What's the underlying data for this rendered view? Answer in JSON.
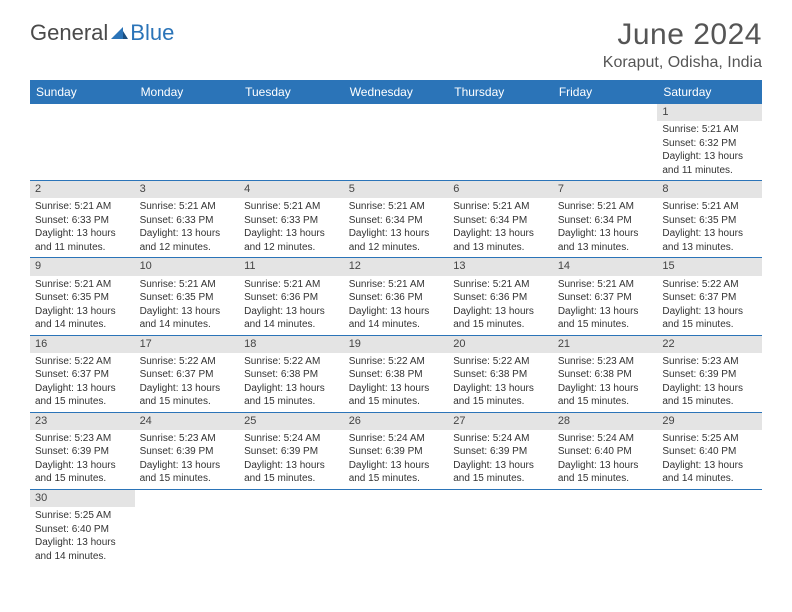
{
  "brand": {
    "part1": "General",
    "part2": "Blue"
  },
  "title": "June 2024",
  "location": "Koraput, Odisha, India",
  "colors": {
    "header_bg": "#2b74b8",
    "header_text": "#ffffff",
    "daynum_bg": "#e4e4e4",
    "border": "#2b74b8",
    "text": "#333333",
    "title_text": "#555555"
  },
  "weekdays": [
    "Sunday",
    "Monday",
    "Tuesday",
    "Wednesday",
    "Thursday",
    "Friday",
    "Saturday"
  ],
  "layout": {
    "rows": 6,
    "cols": 7,
    "first_weekday_index": 6,
    "days_in_month": 30
  },
  "days": {
    "1": {
      "sunrise": "5:21 AM",
      "sunset": "6:32 PM",
      "daylight": "13 hours and 11 minutes."
    },
    "2": {
      "sunrise": "5:21 AM",
      "sunset": "6:33 PM",
      "daylight": "13 hours and 11 minutes."
    },
    "3": {
      "sunrise": "5:21 AM",
      "sunset": "6:33 PM",
      "daylight": "13 hours and 12 minutes."
    },
    "4": {
      "sunrise": "5:21 AM",
      "sunset": "6:33 PM",
      "daylight": "13 hours and 12 minutes."
    },
    "5": {
      "sunrise": "5:21 AM",
      "sunset": "6:34 PM",
      "daylight": "13 hours and 12 minutes."
    },
    "6": {
      "sunrise": "5:21 AM",
      "sunset": "6:34 PM",
      "daylight": "13 hours and 13 minutes."
    },
    "7": {
      "sunrise": "5:21 AM",
      "sunset": "6:34 PM",
      "daylight": "13 hours and 13 minutes."
    },
    "8": {
      "sunrise": "5:21 AM",
      "sunset": "6:35 PM",
      "daylight": "13 hours and 13 minutes."
    },
    "9": {
      "sunrise": "5:21 AM",
      "sunset": "6:35 PM",
      "daylight": "13 hours and 14 minutes."
    },
    "10": {
      "sunrise": "5:21 AM",
      "sunset": "6:35 PM",
      "daylight": "13 hours and 14 minutes."
    },
    "11": {
      "sunrise": "5:21 AM",
      "sunset": "6:36 PM",
      "daylight": "13 hours and 14 minutes."
    },
    "12": {
      "sunrise": "5:21 AM",
      "sunset": "6:36 PM",
      "daylight": "13 hours and 14 minutes."
    },
    "13": {
      "sunrise": "5:21 AM",
      "sunset": "6:36 PM",
      "daylight": "13 hours and 15 minutes."
    },
    "14": {
      "sunrise": "5:21 AM",
      "sunset": "6:37 PM",
      "daylight": "13 hours and 15 minutes."
    },
    "15": {
      "sunrise": "5:22 AM",
      "sunset": "6:37 PM",
      "daylight": "13 hours and 15 minutes."
    },
    "16": {
      "sunrise": "5:22 AM",
      "sunset": "6:37 PM",
      "daylight": "13 hours and 15 minutes."
    },
    "17": {
      "sunrise": "5:22 AM",
      "sunset": "6:37 PM",
      "daylight": "13 hours and 15 minutes."
    },
    "18": {
      "sunrise": "5:22 AM",
      "sunset": "6:38 PM",
      "daylight": "13 hours and 15 minutes."
    },
    "19": {
      "sunrise": "5:22 AM",
      "sunset": "6:38 PM",
      "daylight": "13 hours and 15 minutes."
    },
    "20": {
      "sunrise": "5:22 AM",
      "sunset": "6:38 PM",
      "daylight": "13 hours and 15 minutes."
    },
    "21": {
      "sunrise": "5:23 AM",
      "sunset": "6:38 PM",
      "daylight": "13 hours and 15 minutes."
    },
    "22": {
      "sunrise": "5:23 AM",
      "sunset": "6:39 PM",
      "daylight": "13 hours and 15 minutes."
    },
    "23": {
      "sunrise": "5:23 AM",
      "sunset": "6:39 PM",
      "daylight": "13 hours and 15 minutes."
    },
    "24": {
      "sunrise": "5:23 AM",
      "sunset": "6:39 PM",
      "daylight": "13 hours and 15 minutes."
    },
    "25": {
      "sunrise": "5:24 AM",
      "sunset": "6:39 PM",
      "daylight": "13 hours and 15 minutes."
    },
    "26": {
      "sunrise": "5:24 AM",
      "sunset": "6:39 PM",
      "daylight": "13 hours and 15 minutes."
    },
    "27": {
      "sunrise": "5:24 AM",
      "sunset": "6:39 PM",
      "daylight": "13 hours and 15 minutes."
    },
    "28": {
      "sunrise": "5:24 AM",
      "sunset": "6:40 PM",
      "daylight": "13 hours and 15 minutes."
    },
    "29": {
      "sunrise": "5:25 AM",
      "sunset": "6:40 PM",
      "daylight": "13 hours and 14 minutes."
    },
    "30": {
      "sunrise": "5:25 AM",
      "sunset": "6:40 PM",
      "daylight": "13 hours and 14 minutes."
    }
  },
  "labels": {
    "sunrise": "Sunrise: ",
    "sunset": "Sunset: ",
    "daylight": "Daylight: "
  }
}
